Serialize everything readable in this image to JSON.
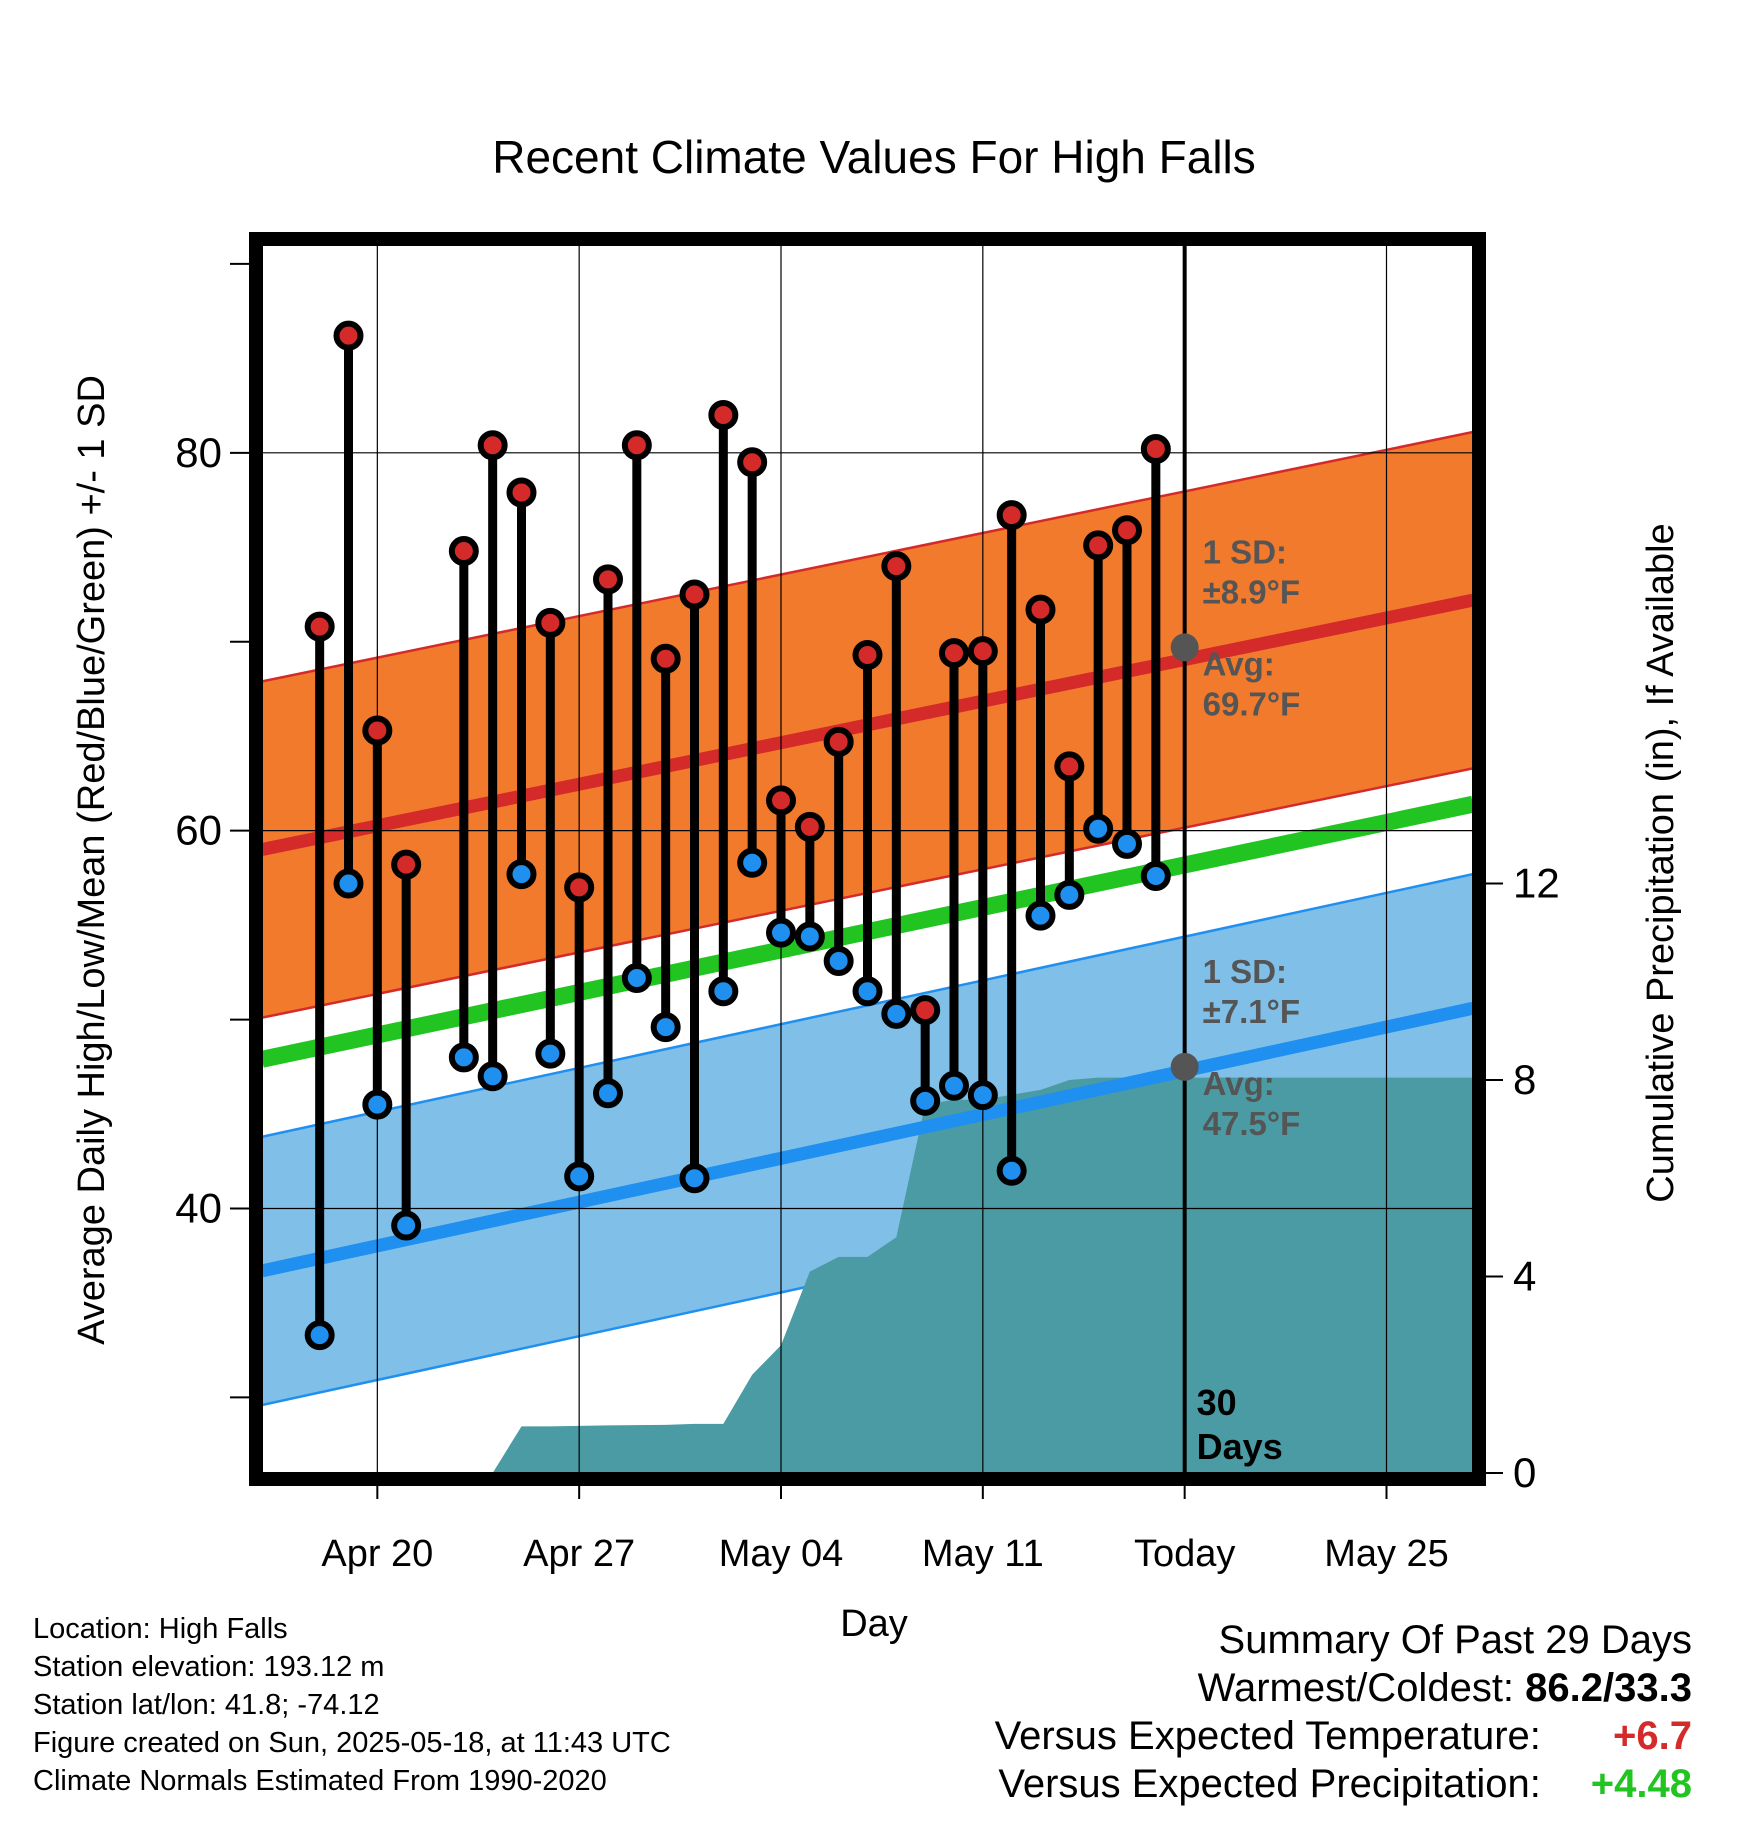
{
  "title": "Recent Climate Values For High Falls",
  "chart_data": {
    "type": "line",
    "title": "Recent Climate Values For High Falls",
    "xlabel": "Day",
    "ylabel_left": "Average Daily High/Low/Mean (Red/Blue/Green) +/- 1 SD",
    "ylabel_right": "Cumulative Precipitation (in), If Available",
    "x_ticks": [
      "Apr 20",
      "Apr 27",
      "May 04",
      "May 11",
      "Today",
      "May 25"
    ],
    "x_tick_dates": [
      "2025-04-20",
      "2025-04-27",
      "2025-05-04",
      "2025-05-11",
      "2025-05-18",
      "2025-05-25"
    ],
    "x_range": [
      "2025-04-16",
      "2025-05-28"
    ],
    "y_left_ticks": [
      40,
      60,
      80
    ],
    "y_left_range": [
      26,
      91
    ],
    "y_right_ticks": [
      0,
      4,
      8,
      12
    ],
    "y_right_range": [
      0,
      25
    ],
    "today": "2025-05-18",
    "today_label": "30 Days",
    "grid": true,
    "normal_high": {
      "start": 59.0,
      "end": 72.2,
      "sd": 8.9
    },
    "normal_low": {
      "start": 36.7,
      "end": 50.6,
      "sd": 7.1
    },
    "normal_mean": {
      "start": 47.9,
      "end": 61.4
    },
    "annotations": {
      "high_sd_label": "1 SD:",
      "high_sd_value": "±8.9°F",
      "high_avg_label": "Avg:",
      "high_avg_value": "69.7°F",
      "high_avg": 69.7,
      "low_sd_label": "1 SD:",
      "low_sd_value": "±7.1°F",
      "low_avg_label": "Avg:",
      "low_avg_value": "47.5°F",
      "low_avg": 47.5
    },
    "series": [
      {
        "name": "High",
        "x": [
          "2025-04-18",
          "2025-04-19",
          "2025-04-20",
          "2025-04-21",
          "2025-04-23",
          "2025-04-24",
          "2025-04-25",
          "2025-04-26",
          "2025-04-27",
          "2025-04-28",
          "2025-04-29",
          "2025-04-30",
          "2025-05-01",
          "2025-05-02",
          "2025-05-03",
          "2025-05-04",
          "2025-05-05",
          "2025-05-06",
          "2025-05-07",
          "2025-05-08",
          "2025-05-09",
          "2025-05-10",
          "2025-05-11",
          "2025-05-12",
          "2025-05-13",
          "2025-05-14",
          "2025-05-15",
          "2025-05-16",
          "2025-05-17"
        ],
        "values": [
          70.8,
          86.2,
          65.3,
          58.2,
          74.8,
          80.4,
          77.9,
          71.0,
          57.0,
          73.3,
          80.4,
          69.1,
          72.5,
          82.0,
          79.5,
          61.6,
          60.2,
          64.7,
          69.3,
          74.0,
          50.5,
          69.4,
          69.5,
          76.7,
          71.7,
          63.4,
          75.1,
          75.9,
          80.2
        ]
      },
      {
        "name": "Low",
        "x": [
          "2025-04-18",
          "2025-04-19",
          "2025-04-20",
          "2025-04-21",
          "2025-04-23",
          "2025-04-24",
          "2025-04-25",
          "2025-04-26",
          "2025-04-27",
          "2025-04-28",
          "2025-04-29",
          "2025-04-30",
          "2025-05-01",
          "2025-05-02",
          "2025-05-03",
          "2025-05-04",
          "2025-05-05",
          "2025-05-06",
          "2025-05-07",
          "2025-05-08",
          "2025-05-09",
          "2025-05-10",
          "2025-05-11",
          "2025-05-12",
          "2025-05-13",
          "2025-05-14",
          "2025-05-15",
          "2025-05-16",
          "2025-05-17"
        ],
        "values": [
          33.3,
          57.2,
          45.5,
          39.1,
          48.0,
          47.0,
          57.7,
          48.2,
          41.7,
          46.1,
          52.2,
          49.6,
          41.6,
          51.5,
          58.3,
          54.6,
          54.4,
          53.1,
          51.5,
          50.3,
          45.7,
          46.5,
          46.0,
          42.0,
          55.5,
          56.6,
          60.1,
          59.3,
          57.6
        ]
      },
      {
        "name": "Cumulative Precipitation",
        "x": [
          "2025-04-24",
          "2025-04-25",
          "2025-04-26",
          "2025-04-28",
          "2025-04-30",
          "2025-05-01",
          "2025-05-02",
          "2025-05-03",
          "2025-05-04",
          "2025-05-05",
          "2025-05-06",
          "2025-05-07",
          "2025-05-08",
          "2025-05-09",
          "2025-05-10",
          "2025-05-11",
          "2025-05-12",
          "2025-05-13",
          "2025-05-14",
          "2025-05-15",
          "2025-05-16",
          "2025-05-17",
          "2025-05-18",
          "2025-05-28"
        ],
        "values": [
          0.0,
          0.95,
          0.95,
          0.97,
          0.98,
          1.0,
          1.0,
          2.0,
          2.6,
          4.1,
          4.4,
          4.4,
          4.8,
          7.5,
          7.6,
          7.6,
          7.7,
          7.8,
          8.0,
          8.05,
          8.05,
          8.05,
          8.05,
          8.05
        ]
      }
    ]
  },
  "info": {
    "location": "Location: High Falls",
    "elevation": "Station elevation: 193.12 m",
    "latlon": "Station lat/lon: 41.8; -74.12",
    "created": "Figure created on Sun, 2025-05-18, at 11:43 UTC",
    "normals": "Climate Normals Estimated From 1990-2020"
  },
  "summary": {
    "heading": "Summary Of Past 29 Days",
    "warm_cold_label": "Warmest/Coldest:",
    "warm_cold_value": "86.2/33.3",
    "temp_label": "Versus Expected Temperature:",
    "temp_value": "+6.7",
    "precip_label": "Versus Expected Precipitation:",
    "precip_value": "+4.48"
  },
  "colors": {
    "high_band": "#f27a2d",
    "high_line": "#d42a2a",
    "low_band": "#80c0e8",
    "low_line": "#1f8ff0",
    "mean_line": "#22c422",
    "precip_fill": "#4a9ba4",
    "high_marker": "#d42a2a",
    "low_marker": "#1f8ff0",
    "annotation": "#555555",
    "today_marker": "#555555"
  }
}
